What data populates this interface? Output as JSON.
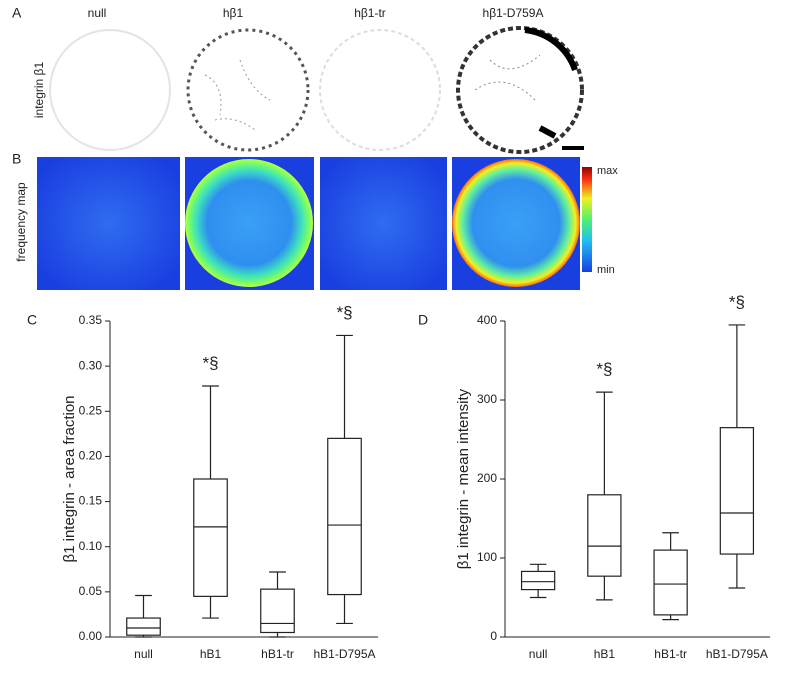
{
  "panels": {
    "A": {
      "label": "A",
      "row_label": "integrin β1",
      "columns": [
        "null",
        "hβ1",
        "hβ1-tr",
        "hβ1-D759A"
      ]
    },
    "B": {
      "label": "B",
      "row_label": "frequency map",
      "colorbar": {
        "max": "max",
        "min": "min"
      }
    }
  },
  "chart_data": [
    {
      "type": "box",
      "panel": "C",
      "y_label": "β1 integrin - area fraction",
      "categories": [
        "null",
        "hB1",
        "hB1-tr",
        "hB1-D795A"
      ],
      "boxes": [
        {
          "min": 0.0,
          "q1": 0.002,
          "median": 0.01,
          "q3": 0.021,
          "max": 0.046
        },
        {
          "min": 0.021,
          "q1": 0.045,
          "median": 0.122,
          "q3": 0.175,
          "max": 0.278
        },
        {
          "min": 0.0,
          "q1": 0.005,
          "median": 0.015,
          "q3": 0.053,
          "max": 0.072
        },
        {
          "min": 0.015,
          "q1": 0.047,
          "median": 0.124,
          "q3": 0.22,
          "max": 0.334
        }
      ],
      "annotations": [
        {
          "text": "*§",
          "category": 1
        },
        {
          "text": "*§",
          "category": 3
        }
      ],
      "ylim": [
        0,
        0.35
      ],
      "yticks": [
        {
          "value": 0,
          "label": "0.00"
        },
        {
          "value": 0.05,
          "label": "0.05"
        },
        {
          "value": 0.1,
          "label": "0.10"
        },
        {
          "value": 0.15,
          "label": "0.15"
        },
        {
          "value": 0.2,
          "label": "0.20"
        },
        {
          "value": 0.25,
          "label": "0.25"
        },
        {
          "value": 0.3,
          "label": "0.30"
        },
        {
          "value": 0.35,
          "label": "0.35"
        }
      ]
    },
    {
      "type": "box",
      "panel": "D",
      "y_label": "β1 integrin - mean intensity",
      "categories": [
        "null",
        "hB1",
        "hB1-tr",
        "hB1-D795A"
      ],
      "boxes": [
        {
          "min": 50,
          "q1": 60,
          "median": 70,
          "q3": 83,
          "max": 92
        },
        {
          "min": 47,
          "q1": 77,
          "median": 115,
          "q3": 180,
          "max": 310
        },
        {
          "min": 22,
          "q1": 28,
          "median": 67,
          "q3": 110,
          "max": 132
        },
        {
          "min": 62,
          "q1": 105,
          "median": 157,
          "q3": 265,
          "max": 395
        }
      ],
      "annotations": [
        {
          "text": "*§",
          "category": 1
        },
        {
          "text": "*§",
          "category": 3
        }
      ],
      "ylim": [
        0,
        400
      ],
      "yticks": [
        0,
        100,
        200,
        300,
        400
      ]
    }
  ]
}
